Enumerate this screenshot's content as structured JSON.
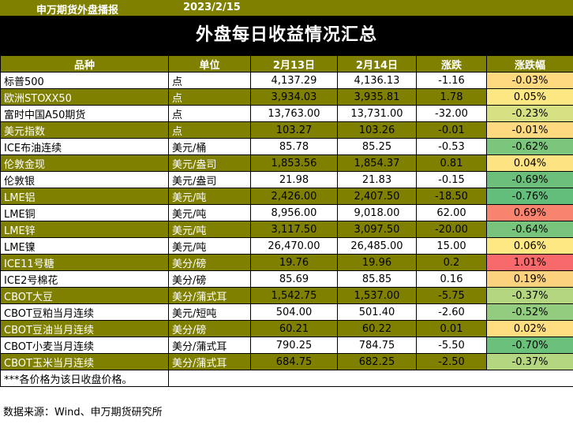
{
  "header": {
    "brand": "申万期货外盘播报",
    "date": "2023/2/15"
  },
  "banner": {
    "title": "外盘每日收益情况汇总"
  },
  "columns": [
    "品种",
    "单位",
    "2月13日",
    "2月14日",
    "涨跌",
    "涨跌幅"
  ],
  "colors": {
    "olive": "#808000",
    "black": "#000000"
  },
  "rows": [
    {
      "name": "标普500",
      "unit": "点",
      "d1": "4,137.29",
      "d2": "4,136.13",
      "chg": "-1.16",
      "pct": "-0.03%",
      "pct_color": "#fed980",
      "olive": false
    },
    {
      "name": "欧洲STOXX50",
      "unit": "点",
      "d1": "3,934.03",
      "d2": "3,935.81",
      "chg": "1.78",
      "pct": "0.05%",
      "pct_color": "#fde783",
      "olive": true
    },
    {
      "name": "富时中国A50期货",
      "unit": "点",
      "d1": "13,763.00",
      "d2": "13,731.00",
      "chg": "-32.00",
      "pct": "-0.23%",
      "pct_color": "#d7e082",
      "olive": false
    },
    {
      "name": "美元指数",
      "unit": "点",
      "d1": "103.27",
      "d2": "103.26",
      "chg": "-0.01",
      "pct": "-0.01%",
      "pct_color": "#fed980",
      "olive": true
    },
    {
      "name": "ICE布油连续",
      "unit": "美元/桶",
      "d1": "85.78",
      "d2": "85.25",
      "chg": "-0.53",
      "pct": "-0.62%",
      "pct_color": "#7bc57c",
      "olive": false
    },
    {
      "name": "伦敦金现",
      "unit": "美元/盎司",
      "d1": "1,853.56",
      "d2": "1,854.37",
      "chg": "0.81",
      "pct": "0.04%",
      "pct_color": "#fee382",
      "olive": true
    },
    {
      "name": "伦敦银",
      "unit": "美元/盎司",
      "d1": "21.98",
      "d2": "21.83",
      "chg": "-0.15",
      "pct": "-0.69%",
      "pct_color": "#6bbf7a",
      "olive": false
    },
    {
      "name": "LME铝",
      "unit": "美元/吨",
      "d1": "2,426.00",
      "d2": "2,407.50",
      "chg": "-18.50",
      "pct": "-0.76%",
      "pct_color": "#63be7b",
      "olive": true
    },
    {
      "name": "LME铜",
      "unit": "美元/吨",
      "d1": "8,956.00",
      "d2": "9,018.00",
      "chg": "62.00",
      "pct": "0.69%",
      "pct_color": "#f8836f",
      "olive": false
    },
    {
      "name": "LME锌",
      "unit": "美元/吨",
      "d1": "3,117.50",
      "d2": "3,097.50",
      "chg": "-20.00",
      "pct": "-0.64%",
      "pct_color": "#78c47c",
      "olive": true
    },
    {
      "name": "LME镍",
      "unit": "美元/吨",
      "d1": "26,470.00",
      "d2": "26,485.00",
      "chg": "15.00",
      "pct": "0.06%",
      "pct_color": "#fee883",
      "olive": false
    },
    {
      "name": "ICE11号糖",
      "unit": "美分/磅",
      "d1": "19.76",
      "d2": "19.96",
      "chg": "0.2",
      "pct": "1.01%",
      "pct_color": "#f8696b",
      "olive": true
    },
    {
      "name": "ICE2号棉花",
      "unit": "美分/磅",
      "d1": "85.69",
      "d2": "85.85",
      "chg": "0.16",
      "pct": "0.19%",
      "pct_color": "#fdd27f",
      "olive": false
    },
    {
      "name": "CBOT大豆",
      "unit": "美分/蒲式耳",
      "d1": "1,542.75",
      "d2": "1,537.00",
      "chg": "-5.75",
      "pct": "-0.37%",
      "pct_color": "#b5d680",
      "olive": true
    },
    {
      "name": "CBOT豆粕当月连续",
      "unit": "美元/短吨",
      "d1": "504.00",
      "d2": "501.40",
      "chg": "-2.60",
      "pct": "-0.52%",
      "pct_color": "#93cc7e",
      "olive": false
    },
    {
      "name": "CBOT豆油当月连续",
      "unit": "美分/磅",
      "d1": "60.21",
      "d2": "60.22",
      "chg": "0.01",
      "pct": "0.02%",
      "pct_color": "#fede81",
      "olive": true
    },
    {
      "name": "CBOT小麦当月连续",
      "unit": "美分/蒲式耳",
      "d1": "790.25",
      "d2": "784.75",
      "chg": "-5.50",
      "pct": "-0.70%",
      "pct_color": "#6bc07b",
      "olive": false
    },
    {
      "name": "CBOT玉米当月连续",
      "unit": "美分/蒲式耳",
      "d1": "684.75",
      "d2": "682.25",
      "chg": "-2.50",
      "pct": "-0.37%",
      "pct_color": "#b5d680",
      "olive": true
    }
  ],
  "note": "***各价格为该日收盘价格。",
  "source": "数据来源：Wind、申万期货研究所"
}
